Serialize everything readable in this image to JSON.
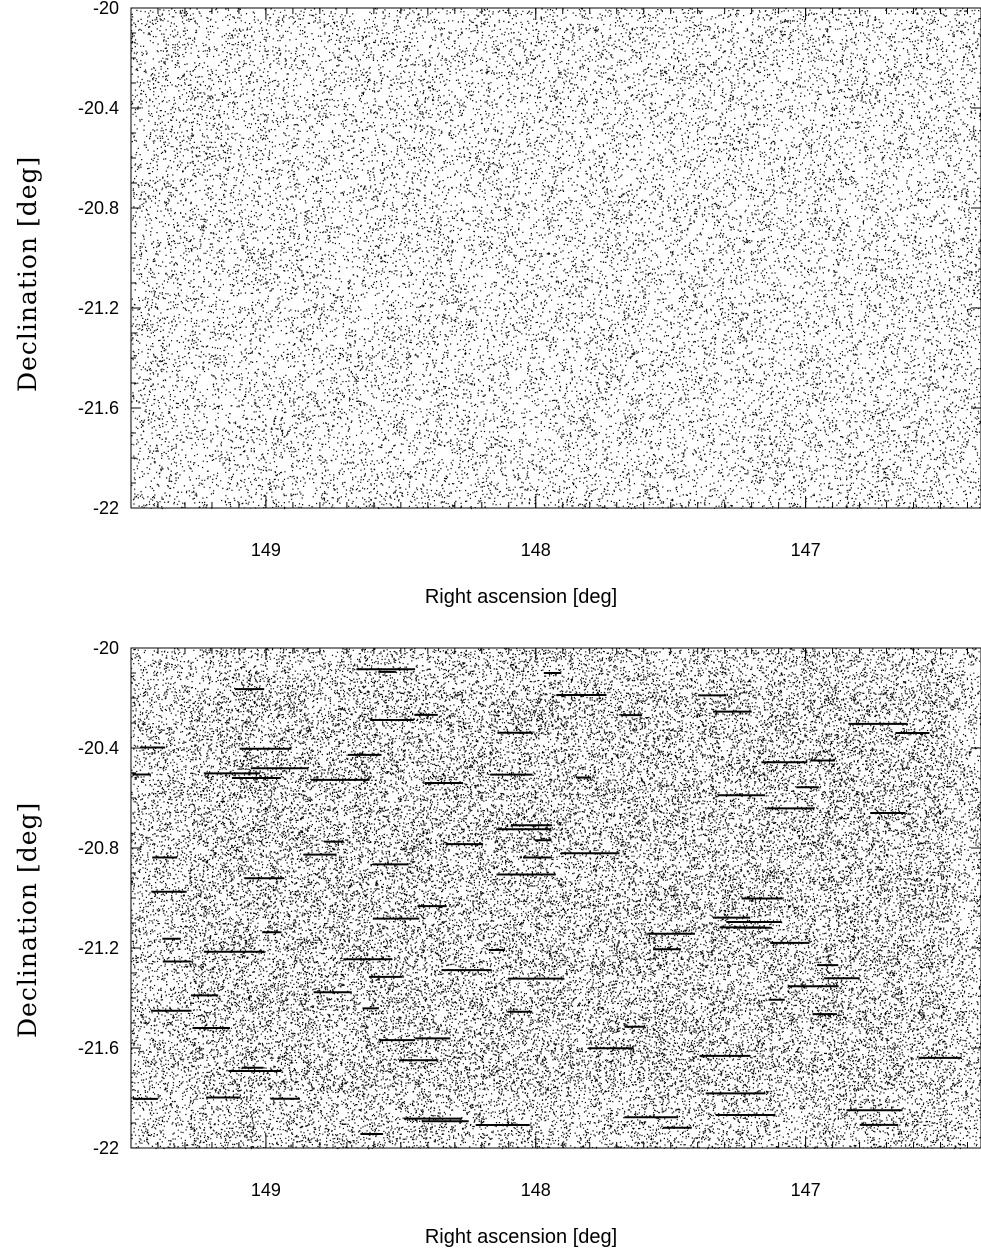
{
  "chart_data": [
    {
      "type": "scatter",
      "xlabel": "Right ascension [deg]",
      "ylabel": "Declination [deg]",
      "xlim": [
        149.5,
        146.35
      ],
      "ylim": [
        -22,
        -20
      ],
      "x_ticks": [
        "149",
        "148",
        "147"
      ],
      "x_tick_values": [
        149,
        148,
        147
      ],
      "y_ticks": [
        "-20",
        "-20.4",
        "-20.8",
        "-21.2",
        "-21.6",
        "-22"
      ],
      "y_tick_values": [
        -20,
        -20.4,
        -20.8,
        -21.2,
        -21.6,
        -22
      ],
      "marker_color": "#000000",
      "density": "uniform sparse random points"
    },
    {
      "type": "scatter",
      "xlabel": "Right ascension [deg]",
      "ylabel": "Declination [deg]",
      "xlim": [
        149.5,
        146.35
      ],
      "ylim": [
        -22,
        -20
      ],
      "x_ticks": [
        "149",
        "148",
        "147"
      ],
      "x_tick_values": [
        149,
        148,
        147
      ],
      "y_ticks": [
        "-20",
        "-20.4",
        "-20.8",
        "-21.2",
        "-21.6",
        "-22"
      ],
      "y_tick_values": [
        -20,
        -20.4,
        -20.8,
        -21.2,
        -21.6,
        -22
      ],
      "marker_color": "#000000",
      "density": "dense clustered points with horizontal streaks"
    }
  ]
}
